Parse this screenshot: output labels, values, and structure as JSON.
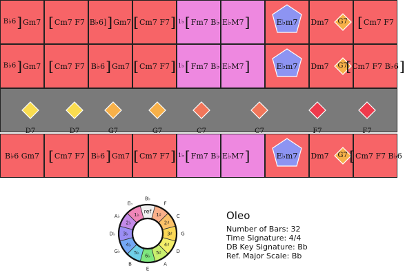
{
  "colors": {
    "red": "#f76467",
    "pink": "#ee88e0",
    "gray": "#7a7a7a",
    "blue_pentagon": "#8d94f2",
    "diamond_yellow": "#f9dc4f",
    "diamond_orange": "#f7b049",
    "diamond_deep_orange": "#f2765a",
    "diamond_red": "#ee3a4c"
  },
  "rows": [
    {
      "cells": [
        {
          "bg": "red",
          "chords": [
            {
              "t": "B♭6",
              "fs": 10
            },
            {
              "br": "]"
            },
            {
              "t": "Gm7"
            }
          ],
          "align": "center"
        },
        {
          "bg": "red",
          "chords": [
            {
              "br": "["
            },
            {
              "t": "Cm7 F7"
            }
          ],
          "align": "center"
        },
        {
          "bg": "red",
          "chords": [
            {
              "t": "B♭6]"
            },
            {
              "br": "]"
            },
            {
              "t": "Gm7"
            }
          ],
          "align": "center"
        },
        {
          "bg": "red",
          "chords": [
            {
              "br": "["
            },
            {
              "t": "Cm7 F7"
            },
            {
              "br": "]"
            }
          ],
          "align": "center"
        },
        {
          "bg": "pink",
          "chords": [
            {
              "t": "1♭",
              "fs": 8
            },
            {
              "br": "["
            },
            {
              "t": "Fm7 B♭7"
            }
          ],
          "align": "left"
        },
        {
          "bg": "pink",
          "chords": [
            {
              "t": "E♭M7"
            },
            {
              "br": "]"
            }
          ],
          "align": "left"
        },
        {
          "bg": "red",
          "pentagon": true,
          "chords": [
            {
              "t": "E♭m7"
            }
          ],
          "align": "center"
        },
        {
          "bg": "red",
          "chords": [
            {
              "t": "Dm7"
            },
            {
              "t": "  "
            },
            {
              "dia": "diamond_orange",
              "t": "G7"
            }
          ],
          "align": "center"
        },
        {
          "bg": "red",
          "chords": [
            {
              "br": "["
            },
            {
              "t": "Cm7 F7"
            }
          ],
          "align": "center"
        }
      ]
    },
    {
      "cells": [
        {
          "bg": "red",
          "chords": [
            {
              "t": "B♭6",
              "fs": 10
            },
            {
              "br": "]"
            },
            {
              "t": "Gm7"
            }
          ],
          "align": "center"
        },
        {
          "bg": "red",
          "chords": [
            {
              "br": "["
            },
            {
              "t": "Cm7 F7"
            }
          ],
          "align": "center"
        },
        {
          "bg": "red",
          "chords": [
            {
              "t": "B♭6"
            },
            {
              "br": "]"
            },
            {
              "t": "Gm7"
            }
          ],
          "align": "center"
        },
        {
          "bg": "red",
          "chords": [
            {
              "br": "["
            },
            {
              "t": "Cm7 F7"
            },
            {
              "br": "]"
            }
          ],
          "align": "center"
        },
        {
          "bg": "pink",
          "chords": [
            {
              "t": "1♭",
              "fs": 8
            },
            {
              "br": "["
            },
            {
              "t": "Fm7 B♭7"
            }
          ],
          "align": "left"
        },
        {
          "bg": "pink",
          "chords": [
            {
              "t": "E♭M7"
            },
            {
              "br": "]"
            }
          ],
          "align": "left"
        },
        {
          "bg": "red",
          "pentagon": true,
          "chords": [
            {
              "t": "E♭m7"
            }
          ],
          "align": "center"
        },
        {
          "bg": "red",
          "chords": [
            {
              "t": "Dm7"
            },
            {
              "t": "  "
            },
            {
              "dia": "diamond_orange",
              "t": "G7"
            }
          ],
          "align": "center"
        },
        {
          "bg": "red",
          "chords": [
            {
              "br": "["
            },
            {
              "t": "Cm7 F7 B♭6"
            },
            {
              "br": "]"
            }
          ],
          "align": "center"
        }
      ]
    },
    {
      "gray": true,
      "diamonds": [
        {
          "t": "D7",
          "c": "diamond_yellow"
        },
        {
          "t": "D7",
          "c": "diamond_yellow"
        },
        {
          "t": "G7",
          "c": "diamond_orange"
        },
        {
          "t": "G7",
          "c": "diamond_orange"
        },
        {
          "t": "C7",
          "c": "diamond_deep_orange"
        },
        {
          "t": "C7",
          "c": "diamond_deep_orange"
        },
        {
          "t": "F7",
          "c": "diamond_red"
        },
        {
          "t": "F7",
          "c": "diamond_red"
        }
      ]
    },
    {
      "cells": [
        {
          "bg": "red",
          "chords": [
            {
              "t": "B♭6 Gm7"
            }
          ],
          "align": "center"
        },
        {
          "bg": "red",
          "chords": [
            {
              "br": "["
            },
            {
              "t": "Cm7 F7"
            }
          ],
          "align": "center"
        },
        {
          "bg": "red",
          "chords": [
            {
              "t": "B♭6"
            },
            {
              "br": "]"
            },
            {
              "t": "Gm7"
            }
          ],
          "align": "center"
        },
        {
          "bg": "red",
          "chords": [
            {
              "br": "["
            },
            {
              "t": "Cm7 F7"
            },
            {
              "br": "]"
            }
          ],
          "align": "center"
        },
        {
          "bg": "pink",
          "chords": [
            {
              "t": "1♭",
              "fs": 8
            },
            {
              "br": "["
            },
            {
              "t": "Fm7 B♭7"
            }
          ],
          "align": "left"
        },
        {
          "bg": "pink",
          "chords": [
            {
              "t": "E♭M7"
            },
            {
              "br": "]"
            }
          ],
          "align": "left"
        },
        {
          "bg": "red",
          "pentagon": true,
          "chords": [
            {
              "t": "E♭m7"
            }
          ],
          "align": "center"
        },
        {
          "bg": "red",
          "chords": [
            {
              "t": "Dm7"
            },
            {
              "t": "  "
            },
            {
              "dia": "diamond_orange",
              "t": "G7"
            }
          ],
          "align": "center"
        },
        {
          "bg": "red",
          "chords": [
            {
              "br": "["
            },
            {
              "t": "Cm7 F7 B♭6"
            }
          ],
          "align": "center"
        }
      ]
    }
  ],
  "wheel": {
    "outer_labels": [
      "B♭",
      "F",
      "C",
      "G",
      "D",
      "A",
      "E",
      "B",
      "G♭",
      "D♭",
      "A♭",
      "E♭"
    ],
    "inner_labels": [
      "ref",
      "1♯",
      "2♯",
      "3♯",
      "4♯",
      "5♯",
      "6♭",
      "5♭",
      "4♭",
      "3♭",
      "2♭",
      "1♭"
    ],
    "segment_colors": [
      "#f0f0f0",
      "#fbb08a",
      "#fbc269",
      "#fbd856",
      "#f3ee6a",
      "#c9ef6d",
      "#7fe67e",
      "#6fd0e8",
      "#74a8f5",
      "#9b8ef4",
      "#c48ae8",
      "#ef86b8"
    ]
  },
  "info": {
    "title": "Oleo",
    "lines": [
      "Number of Bars: 32",
      "Time Signature: 4/4",
      "DB Key Signature: Bb",
      "Ref. Major Scale: Bb"
    ]
  }
}
